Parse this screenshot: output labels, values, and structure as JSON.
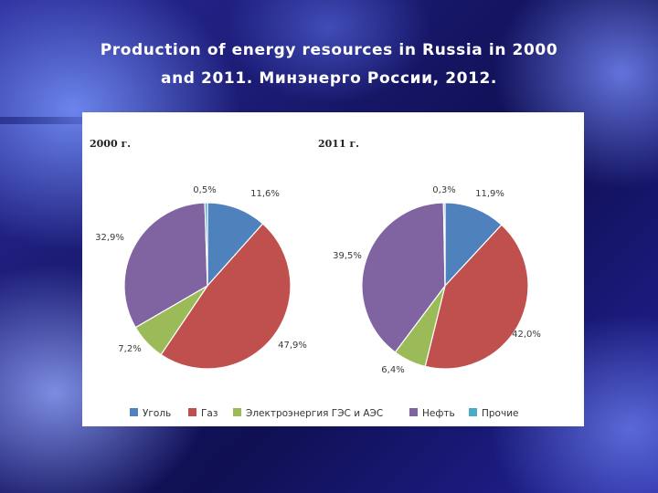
{
  "slide": {
    "title_line1": "Production of energy resources in Russia in 2000",
    "title_line2": "and 2011. Минэнерго России, 2012."
  },
  "chart_data": {
    "type": "pie",
    "categories": [
      "Уголь",
      "Газ",
      "Электроэнергия  ГЭС и АЭС",
      "Нефть",
      "Прочие"
    ],
    "colors": [
      "#4f81bd",
      "#c0504d",
      "#9bbb59",
      "#8064a2",
      "#4bacc6"
    ],
    "legend_position": "bottom",
    "charts": [
      {
        "title": "2000 г.",
        "values": [
          11.6,
          47.9,
          7.2,
          32.9,
          0.5
        ],
        "labels": [
          "11,6%",
          "47,9%",
          "7,2%",
          "32,9%",
          "0,5%"
        ]
      },
      {
        "title": "2011 г.",
        "values": [
          11.9,
          42.0,
          6.4,
          39.5,
          0.3
        ],
        "labels": [
          "11,9%",
          "42,0%",
          "6,4%",
          "39,5%",
          "0,3%"
        ]
      }
    ]
  }
}
